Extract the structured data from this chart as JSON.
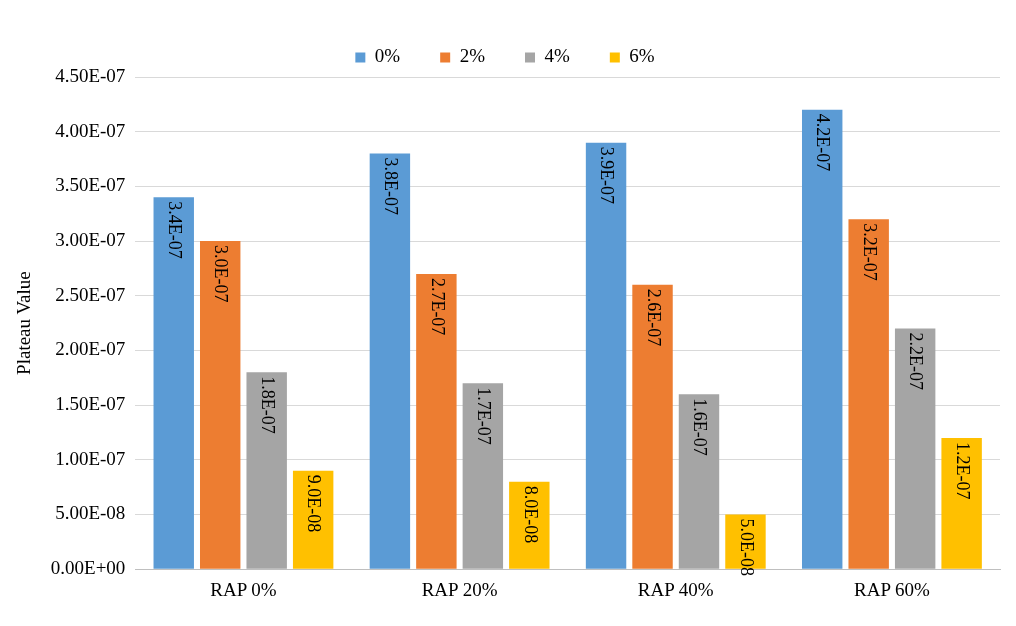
{
  "chart_data": {
    "type": "bar",
    "ylabel": "Plateau Value",
    "categories": [
      "RAP 0%",
      "RAP 20%",
      "RAP 40%",
      "RAP 60%"
    ],
    "series": [
      {
        "name": "0%",
        "color": "#5b9bd5",
        "values": [
          3.4e-07,
          3.8e-07,
          3.9e-07,
          4.2e-07
        ],
        "value_labels": [
          "3.4E-07",
          "3.8E-07",
          "3.9E-07",
          "4.2E-07"
        ]
      },
      {
        "name": "2%",
        "color": "#ed7d31",
        "values": [
          3e-07,
          2.7e-07,
          2.6e-07,
          3.2e-07
        ],
        "value_labels": [
          "3.0E-07",
          "2.7E-07",
          "2.6E-07",
          "3.2E-07"
        ]
      },
      {
        "name": "4%",
        "color": "#a5a5a5",
        "values": [
          1.8e-07,
          1.7e-07,
          1.6e-07,
          2.2e-07
        ],
        "value_labels": [
          "1.8E-07",
          "1.7E-07",
          "1.6E-07",
          "2.2E-07"
        ]
      },
      {
        "name": "6%",
        "color": "#ffc000",
        "values": [
          9e-08,
          8e-08,
          5e-08,
          1.2e-07
        ],
        "value_labels": [
          "9.0E-08",
          "8.0E-08",
          "5.0E-08",
          "1.2E-07"
        ]
      }
    ],
    "ylim": [
      0,
      4.5e-07
    ],
    "yticks": [
      {
        "value": 0,
        "label": "0.00E+00"
      },
      {
        "value": 5e-08,
        "label": "5.00E-08"
      },
      {
        "value": 1e-07,
        "label": "1.00E-07"
      },
      {
        "value": 1.5e-07,
        "label": "1.50E-07"
      },
      {
        "value": 2e-07,
        "label": "2.00E-07"
      },
      {
        "value": 2.5e-07,
        "label": "2.50E-07"
      },
      {
        "value": 3e-07,
        "label": "3.00E-07"
      },
      {
        "value": 3.5e-07,
        "label": "3.50E-07"
      },
      {
        "value": 4e-07,
        "label": "4.00E-07"
      },
      {
        "value": 4.5e-07,
        "label": "4.50E-07"
      }
    ],
    "grid": "y",
    "legend": "top"
  }
}
